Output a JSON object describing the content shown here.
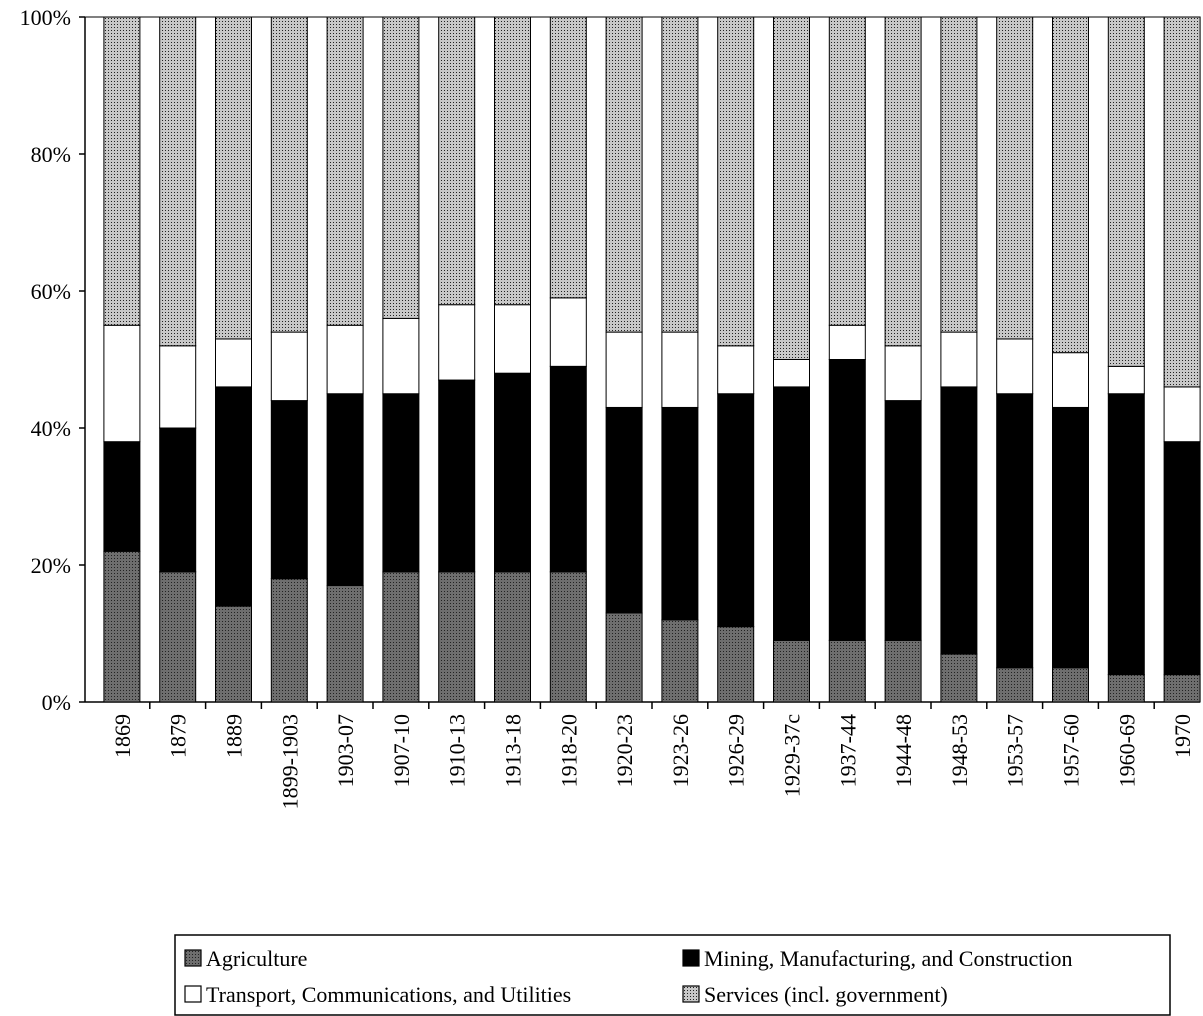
{
  "chart_data": {
    "type": "stacked_bar",
    "categories": [
      "1869",
      "1879",
      "1889",
      "1899-1903",
      "1903-07",
      "1907-10",
      "1910-13",
      "1913-18",
      "1918-20",
      "1920-23",
      "1923-26",
      "1926-29",
      "1929-37c",
      "1937-44",
      "1944-48",
      "1948-53",
      "1953-57",
      "1957-60",
      "1960-69",
      "1970"
    ],
    "series": [
      {
        "name": "Agriculture",
        "color": "#6e6e6e",
        "values": [
          22,
          19,
          14,
          18,
          17,
          19,
          19,
          19,
          19,
          13,
          12,
          11,
          9,
          9,
          9,
          7,
          5,
          5,
          4,
          4
        ]
      },
      {
        "name": "Mining, Manufacturing, and Construction",
        "color": "#000000",
        "values": [
          16,
          21,
          32,
          26,
          28,
          26,
          28,
          29,
          30,
          30,
          31,
          34,
          37,
          41,
          35,
          39,
          40,
          38,
          41,
          34
        ]
      },
      {
        "name": "Transport, Communications, and Utilities",
        "color": "#ffffff",
        "values": [
          17,
          12,
          7,
          10,
          10,
          11,
          11,
          10,
          10,
          11,
          11,
          7,
          4,
          5,
          8,
          8,
          8,
          8,
          4,
          8
        ]
      },
      {
        "name": "Services (incl. government)",
        "color": "#c8c8c8",
        "values": [
          45,
          48,
          47,
          46,
          45,
          44,
          42,
          42,
          41,
          46,
          46,
          48,
          50,
          45,
          48,
          46,
          47,
          49,
          51,
          54
        ]
      }
    ],
    "ylim": [
      0,
      100
    ],
    "yticks": [
      {
        "value": 0,
        "label": "0%"
      },
      {
        "value": 20,
        "label": "20%"
      },
      {
        "value": 40,
        "label": "40%"
      },
      {
        "value": 60,
        "label": "60%"
      },
      {
        "value": 80,
        "label": "80%"
      },
      {
        "value": 100,
        "label": "100%"
      }
    ],
    "legend": "bottom"
  }
}
